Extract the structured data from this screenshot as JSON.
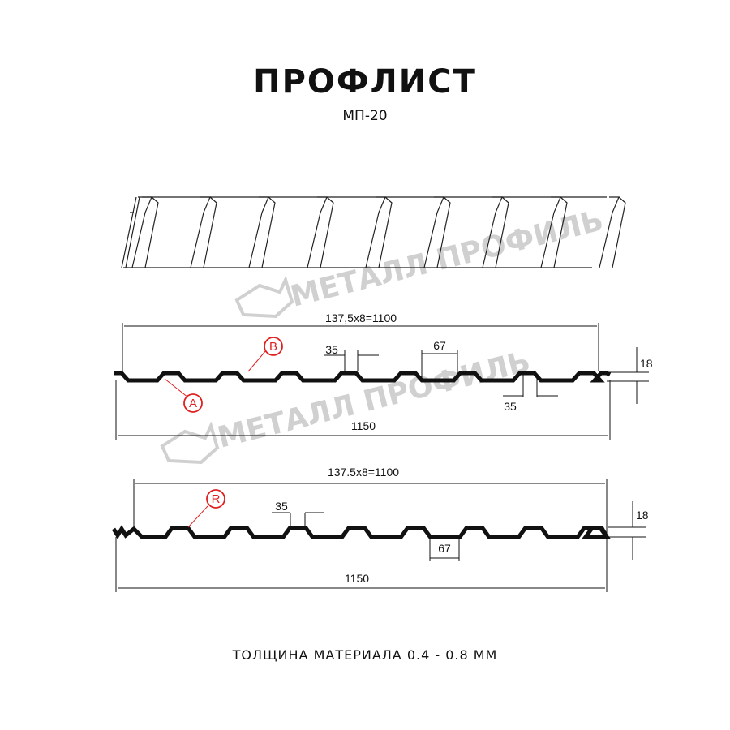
{
  "title": "ПРОФЛИСТ",
  "subtitle": "МП-20",
  "footer": "ТОЛЩИНА МАТЕРИАЛА 0.4 - 0.8 ММ",
  "watermark": "МЕТАЛЛ ПРОФИЛЬ",
  "colors": {
    "profile": "#111111",
    "marker": "#e02020",
    "watermark": "#d0d0d0"
  },
  "profile_a": {
    "pitch_label": "137,5x8=1100",
    "width_label": "1150",
    "crest_label": "35",
    "crest_label_2": "35",
    "trough_label": "67",
    "height_label": "18",
    "markers": [
      "A",
      "B"
    ]
  },
  "profile_r": {
    "pitch_label": "137.5x8=1100",
    "width_label": "1150",
    "crest_label": "35",
    "trough_label": "67",
    "height_label": "18",
    "markers": [
      "R"
    ]
  }
}
